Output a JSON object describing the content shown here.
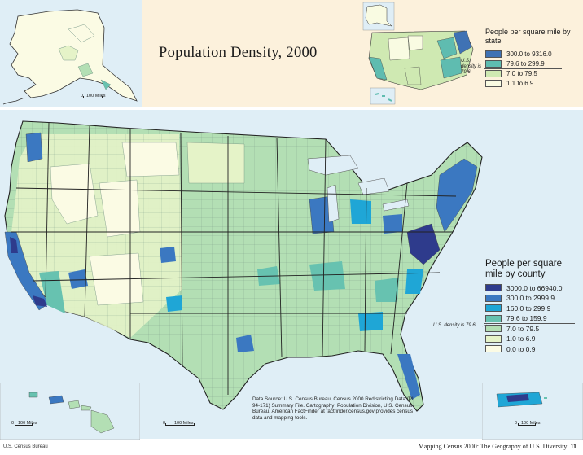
{
  "title": "Population Density, 2000",
  "state_legend": {
    "title": "People per square mile by state",
    "note": "U.S. density is 79.6",
    "items": [
      {
        "label": "300.0 to 9316.0",
        "color": "#3f72b4"
      },
      {
        "label": "79.6 to 299.9",
        "color": "#5fbcb0"
      },
      {
        "label": "7.0 to 79.5",
        "color": "#cfe9b2"
      },
      {
        "label": "1.1 to 6.9",
        "color": "#f9fbe2"
      }
    ]
  },
  "county_legend": {
    "title": "People per square mile by county",
    "note": "U.S. density is 79.6",
    "items": [
      {
        "label": "3000.0 to 66940.0",
        "color": "#2e3b8c"
      },
      {
        "label": "300.0 to 2999.9",
        "color": "#3b78c1"
      },
      {
        "label": "160.0 to 299.9",
        "color": "#1fa6d6"
      },
      {
        "label": "79.6 to 159.9",
        "color": "#67c2b0"
      },
      {
        "label": "7.0 to 79.5",
        "color": "#b3dfb4"
      },
      {
        "label": "1.0 to 6.9",
        "color": "#e5f3c8"
      },
      {
        "label": "0.0 to 0.9",
        "color": "#fbfbe4"
      }
    ]
  },
  "scale_label": "100 Miles",
  "scale_zero": "0",
  "source_note": "Data Source: U.S. Census Bureau, Census 2000 Redistricting Data (PL 94-171) Summary File. Cartography: Population Division, U.S. Census Bureau. American FactFinder at factfinder.census.gov provides census data and mapping tools.",
  "footer": {
    "left": "U.S. Census Bureau",
    "right": "Mapping Census 2000: The Geography of U.S. Diversity",
    "page": "11"
  },
  "colors": {
    "water": "#dfeef6",
    "band": "#fcf1dc",
    "state_border": "#222222",
    "county_border": "#7a9a8a"
  }
}
